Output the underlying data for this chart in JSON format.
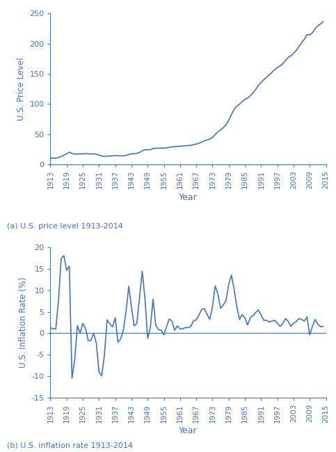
{
  "years": [
    1913,
    1914,
    1915,
    1916,
    1917,
    1918,
    1919,
    1920,
    1921,
    1922,
    1923,
    1924,
    1925,
    1926,
    1927,
    1928,
    1929,
    1930,
    1931,
    1932,
    1933,
    1934,
    1935,
    1936,
    1937,
    1938,
    1939,
    1940,
    1941,
    1942,
    1943,
    1944,
    1945,
    1946,
    1947,
    1948,
    1949,
    1950,
    1951,
    1952,
    1953,
    1954,
    1955,
    1956,
    1957,
    1958,
    1959,
    1960,
    1961,
    1962,
    1963,
    1964,
    1965,
    1966,
    1967,
    1968,
    1969,
    1970,
    1971,
    1972,
    1973,
    1974,
    1975,
    1976,
    1977,
    1978,
    1979,
    1980,
    1981,
    1982,
    1983,
    1984,
    1985,
    1986,
    1987,
    1988,
    1989,
    1990,
    1991,
    1992,
    1993,
    1994,
    1995,
    1996,
    1997,
    1998,
    1999,
    2000,
    2001,
    2002,
    2003,
    2004,
    2005,
    2006,
    2007,
    2008,
    2009,
    2010,
    2011,
    2012,
    2013,
    2014
  ],
  "price_level": [
    9.9,
    10.0,
    10.1,
    10.9,
    12.8,
    15.1,
    17.3,
    20.0,
    17.9,
    16.8,
    17.1,
    17.1,
    17.5,
    17.7,
    17.4,
    17.1,
    17.1,
    16.7,
    15.2,
    13.7,
    13.0,
    13.4,
    13.7,
    13.9,
    14.4,
    14.1,
    13.9,
    14.0,
    14.7,
    16.3,
    17.3,
    17.6,
    18.0,
    19.5,
    22.3,
    24.1,
    23.8,
    24.1,
    26.0,
    26.5,
    26.7,
    26.9,
    26.8,
    27.2,
    28.1,
    28.9,
    29.1,
    29.6,
    29.9,
    30.2,
    30.6,
    31.0,
    31.5,
    32.4,
    33.4,
    34.8,
    36.7,
    38.8,
    40.5,
    41.8,
    44.4,
    49.3,
    53.8,
    56.9,
    60.6,
    65.2,
    72.6,
    82.4,
    90.9,
    96.5,
    99.6,
    103.9,
    107.6,
    109.6,
    113.6,
    118.3,
    124.0,
    130.7,
    136.2,
    140.3,
    144.5,
    148.2,
    152.4,
    156.9,
    160.5,
    163.0,
    166.6,
    172.2,
    177.1,
    179.9,
    184.0,
    188.9,
    195.3,
    201.6,
    207.3,
    215.3,
    214.5,
    218.1,
    224.9,
    229.6,
    233.0,
    236.7
  ],
  "inflation": [
    1.3,
    1.0,
    1.0,
    7.7,
    17.4,
    18.0,
    14.6,
    15.6,
    -10.5,
    -6.1,
    1.8,
    0.0,
    2.3,
    1.1,
    -1.7,
    -1.7,
    0.0,
    -2.3,
    -9.0,
    -9.9,
    -5.1,
    3.1,
    2.2,
    1.5,
    3.6,
    -2.1,
    -1.4,
    0.7,
    5.0,
    10.9,
    6.1,
    1.7,
    2.3,
    8.3,
    14.4,
    8.1,
    -1.2,
    1.3,
    7.9,
    1.9,
    0.8,
    0.7,
    -0.4,
    1.5,
    3.3,
    2.8,
    0.7,
    1.7,
    1.0,
    1.0,
    1.3,
    1.3,
    1.6,
    2.9,
    3.1,
    4.2,
    5.5,
    5.7,
    4.4,
    3.2,
    6.2,
    11.0,
    9.1,
    5.8,
    6.5,
    7.6,
    11.3,
    13.5,
    10.3,
    6.2,
    3.2,
    4.3,
    3.6,
    1.9,
    3.6,
    4.1,
    4.8,
    5.4,
    4.2,
    3.0,
    3.0,
    2.6,
    2.8,
    3.0,
    2.3,
    1.6,
    2.2,
    3.4,
    2.8,
    1.6,
    2.3,
    2.7,
    3.4,
    3.2,
    2.8,
    3.8,
    -0.4,
    1.6,
    3.2,
    2.1,
    1.5,
    1.6
  ],
  "line_color": "#4472C4",
  "ylabel_a": "U.S. Price Level",
  "ylabel_b": "U.S. Inflation Rate (%)",
  "xlabel": "Year",
  "caption_a": "(a) U.S. price level 1913-2014",
  "caption_b": "(b) U.S. inflation rate 1913-2014",
  "xticks": [
    1913,
    1919,
    1925,
    1931,
    1937,
    1943,
    1949,
    1955,
    1961,
    1967,
    1973,
    1979,
    1985,
    1991,
    1997,
    2003,
    2009,
    2015
  ],
  "ylim_a": [
    0,
    250
  ],
  "yticks_a": [
    0,
    50,
    100,
    150,
    200,
    250
  ],
  "ylim_b": [
    -15,
    20
  ],
  "yticks_b": [
    -15,
    -10,
    -5,
    0,
    5,
    10,
    15,
    20
  ]
}
